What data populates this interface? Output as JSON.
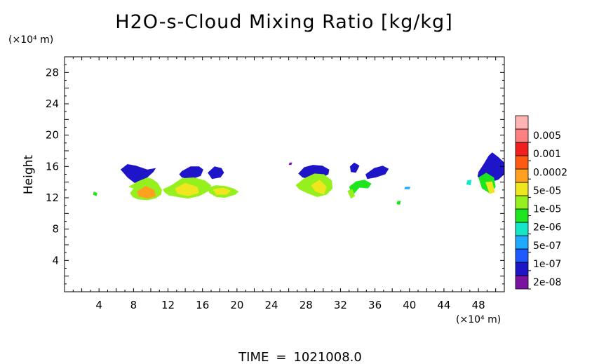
{
  "chart_data": {
    "type": "heatmap",
    "title": "H2O-s-Cloud Mixing Ratio [kg/kg]",
    "ylabel": "Height",
    "y_unit": "(×10⁴ m)",
    "x_unit": "(×10⁴ m)",
    "xlim": [
      0,
      51
    ],
    "ylim": [
      0,
      30
    ],
    "x_ticks": [
      "4",
      "8",
      "12",
      "16",
      "20",
      "24",
      "28",
      "32",
      "36",
      "40",
      "44",
      "48"
    ],
    "y_ticks": [
      "4",
      "8",
      "12",
      "16",
      "20",
      "24",
      "28"
    ],
    "colorbar": {
      "labels": [
        "0.005",
        "0.001",
        "0.0002",
        "5e-05",
        "1e-05",
        "2e-06",
        "5e-07",
        "1e-07",
        "2e-08"
      ],
      "colors": [
        "#7a14a0",
        "#1e14c8",
        "#1e5aff",
        "#1eaaff",
        "#14e6c8",
        "#1ee61e",
        "#96f01e",
        "#f0e61e",
        "#ffa01e",
        "#ff5a14",
        "#f01e1e",
        "#ff8080",
        "#ffb4b4"
      ]
    },
    "clouds": [
      {
        "x": [
          6.5,
          7.3,
          8.3,
          9.6,
          10.6,
          10.3,
          9.1,
          8.1,
          7.3,
          6.9
        ],
        "y": [
          15.6,
          16.3,
          16.1,
          15.6,
          15.8,
          15.3,
          14.1,
          13.9,
          14.6,
          15.1
        ],
        "level": 1
      },
      {
        "x": [
          7.4,
          8.5,
          9.6,
          10.2,
          10.8,
          11.3,
          11.2,
          10.5,
          9.6,
          8.5,
          7.9,
          7.6,
          8.0
        ],
        "y": [
          13.4,
          14.1,
          14.6,
          14.4,
          13.9,
          13.0,
          12.4,
          11.9,
          11.7,
          11.8,
          12.1,
          12.6,
          13.2
        ],
        "level": 6
      },
      {
        "x": [
          8.4,
          9.4,
          10.4,
          10.6,
          9.6,
          8.6
        ],
        "y": [
          12.8,
          13.5,
          13.0,
          12.2,
          11.9,
          12.2
        ],
        "level": 8
      },
      {
        "x": [
          13.6,
          14.6,
          15.6,
          16.1,
          15.8,
          14.6,
          13.6,
          13.3
        ],
        "y": [
          15.4,
          16.0,
          16.0,
          15.6,
          14.8,
          14.3,
          14.6,
          15.0
        ],
        "level": 1
      },
      {
        "x": [
          11.4,
          12.4,
          13.6,
          15.0,
          16.3,
          17.0,
          16.8,
          15.6,
          14.3,
          13.1,
          12.1,
          11.6
        ],
        "y": [
          13.1,
          13.6,
          14.5,
          14.6,
          14.2,
          13.6,
          12.9,
          12.2,
          11.9,
          12.1,
          12.3,
          12.7
        ],
        "level": 6
      },
      {
        "x": [
          12.8,
          14.0,
          15.4,
          15.6,
          14.3,
          13.1
        ],
        "y": [
          13.2,
          13.9,
          13.4,
          12.6,
          12.2,
          12.5
        ],
        "level": 7
      },
      {
        "x": [
          16.6,
          17.4,
          18.2,
          18.5,
          18.1,
          17.1
        ],
        "y": [
          15.2,
          16.0,
          15.8,
          15.2,
          14.6,
          14.4
        ],
        "level": 1
      },
      {
        "x": [
          16.6,
          17.6,
          18.6,
          19.6,
          20.2,
          19.8,
          18.6,
          17.6,
          16.8
        ],
        "y": [
          13.3,
          13.6,
          13.5,
          13.2,
          12.8,
          12.4,
          12.0,
          12.1,
          12.6
        ],
        "level": 6
      },
      {
        "x": [
          17.2,
          18.4,
          19.3,
          18.8,
          17.6
        ],
        "y": [
          13.1,
          13.3,
          12.9,
          12.4,
          12.4
        ],
        "level": 7
      },
      {
        "x": [
          3.4,
          3.8,
          3.7,
          3.3
        ],
        "y": [
          12.8,
          12.6,
          12.2,
          12.4
        ],
        "level": 5
      },
      {
        "x": [
          27.1,
          27.8,
          28.8,
          29.9,
          30.7,
          30.6,
          29.6,
          28.6,
          27.6,
          27.3
        ],
        "y": [
          15.1,
          15.9,
          16.2,
          16.1,
          15.6,
          15.0,
          14.4,
          14.3,
          14.6,
          14.9
        ],
        "level": 1
      },
      {
        "x": [
          26.8,
          27.8,
          29.0,
          30.1,
          31.0,
          31.1,
          30.4,
          29.3,
          28.1,
          27.2
        ],
        "y": [
          13.6,
          14.5,
          15.1,
          15.0,
          14.2,
          13.2,
          12.4,
          12.1,
          12.6,
          13.1
        ],
        "level": 6
      },
      {
        "x": [
          28.6,
          29.6,
          30.4,
          30.1,
          29.1
        ],
        "y": [
          13.6,
          14.3,
          13.4,
          12.4,
          12.8
        ],
        "level": 7
      },
      {
        "x": [
          33.1,
          33.6,
          34.2,
          33.8,
          33.2
        ],
        "y": [
          16.0,
          16.5,
          16.1,
          15.2,
          15.3
        ],
        "level": 1
      },
      {
        "x": [
          34.9,
          35.9,
          36.9,
          37.6,
          37.2,
          36.1,
          35.1
        ],
        "y": [
          15.0,
          15.8,
          16.1,
          15.7,
          15.0,
          14.6,
          14.4
        ],
        "level": 1
      },
      {
        "x": [
          33.0,
          33.8,
          34.8,
          35.6,
          35.2,
          34.2,
          33.4
        ],
        "y": [
          13.4,
          14.1,
          14.3,
          13.8,
          13.2,
          13.3,
          12.3
        ],
        "level": 5
      },
      {
        "x": [
          32.8,
          33.4,
          33.7,
          33.2
        ],
        "y": [
          12.9,
          13.1,
          12.2,
          11.9
        ],
        "level": 6
      },
      {
        "x": [
          38.6,
          39.0,
          38.9,
          38.5
        ],
        "y": [
          11.6,
          11.6,
          11.1,
          11.2
        ],
        "level": 5
      },
      {
        "x": [
          39.5,
          40.1,
          40.0,
          39.4
        ],
        "y": [
          13.4,
          13.4,
          13.1,
          13.1
        ],
        "level": 3
      },
      {
        "x": [
          26.1,
          26.4,
          26.3,
          26.0
        ],
        "y": [
          16.5,
          16.5,
          16.2,
          16.2
        ],
        "level": 0
      },
      {
        "x": [
          46.7,
          47.2,
          47.1,
          46.6
        ],
        "y": [
          14.2,
          14.3,
          13.6,
          13.7
        ],
        "level": 4
      },
      {
        "x": [
          48.0,
          48.6,
          49.2,
          49.6,
          50.3,
          51.0,
          51.0,
          50.3,
          49.4,
          48.4,
          47.9
        ],
        "y": [
          15.3,
          16.3,
          17.4,
          17.8,
          17.2,
          16.5,
          15.0,
          14.3,
          14.0,
          14.2,
          14.7
        ],
        "level": 1
      },
      {
        "x": [
          48.0,
          48.9,
          49.8,
          50.0,
          49.4,
          48.4
        ],
        "y": [
          14.6,
          15.2,
          14.6,
          13.4,
          12.5,
          13.2
        ],
        "level": 5
      },
      {
        "x": [
          48.8,
          49.6,
          49.9,
          49.3
        ],
        "y": [
          14.0,
          14.1,
          12.7,
          12.5
        ],
        "level": 7
      }
    ],
    "grid": false
  },
  "footer": {
    "time_label": "TIME",
    "time_sep": "=",
    "time_value": "1021008.0"
  }
}
